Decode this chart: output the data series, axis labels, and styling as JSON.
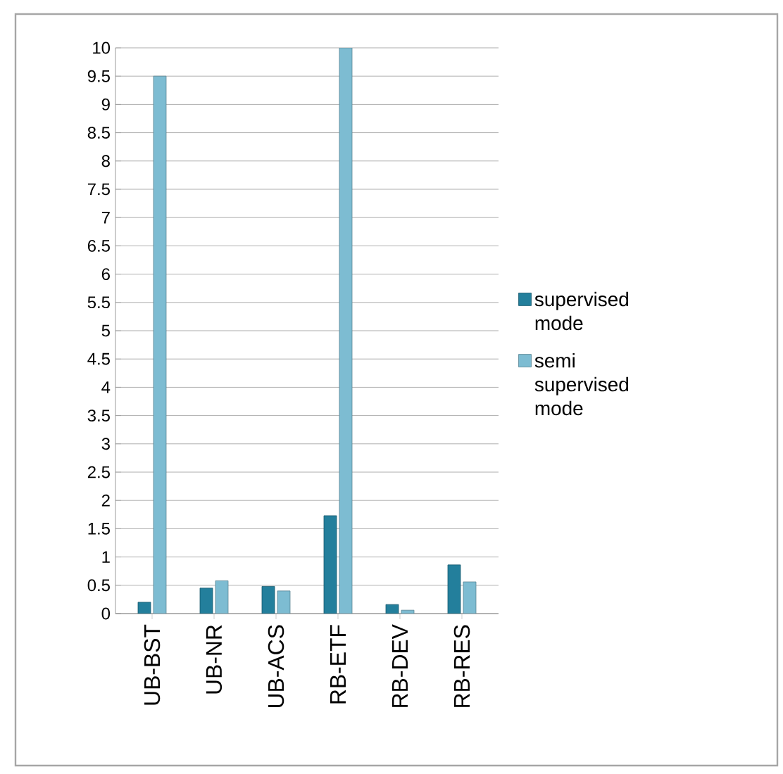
{
  "chart_data": {
    "type": "bar",
    "categories": [
      "UB-BST",
      "UB-NR",
      "UB-ACS",
      "RB-ETF",
      "RB-DEV",
      "RB-RES"
    ],
    "series": [
      {
        "name": "supervised mode",
        "color": "#237f9c",
        "values": [
          0.2,
          0.45,
          0.48,
          1.73,
          0.16,
          0.86
        ]
      },
      {
        "name": "semi supervised mode",
        "color": "#7dbcd2",
        "values": [
          9.5,
          0.58,
          0.4,
          10,
          0.06,
          0.56
        ]
      }
    ],
    "ylim": [
      0,
      10
    ],
    "yticks": [
      0,
      0.5,
      1,
      1.5,
      2,
      2.5,
      3,
      3.5,
      4,
      4.5,
      5,
      5.5,
      6,
      6.5,
      7,
      7.5,
      8,
      8.5,
      9,
      9.5,
      10
    ],
    "grid": "y",
    "legend": "right"
  }
}
